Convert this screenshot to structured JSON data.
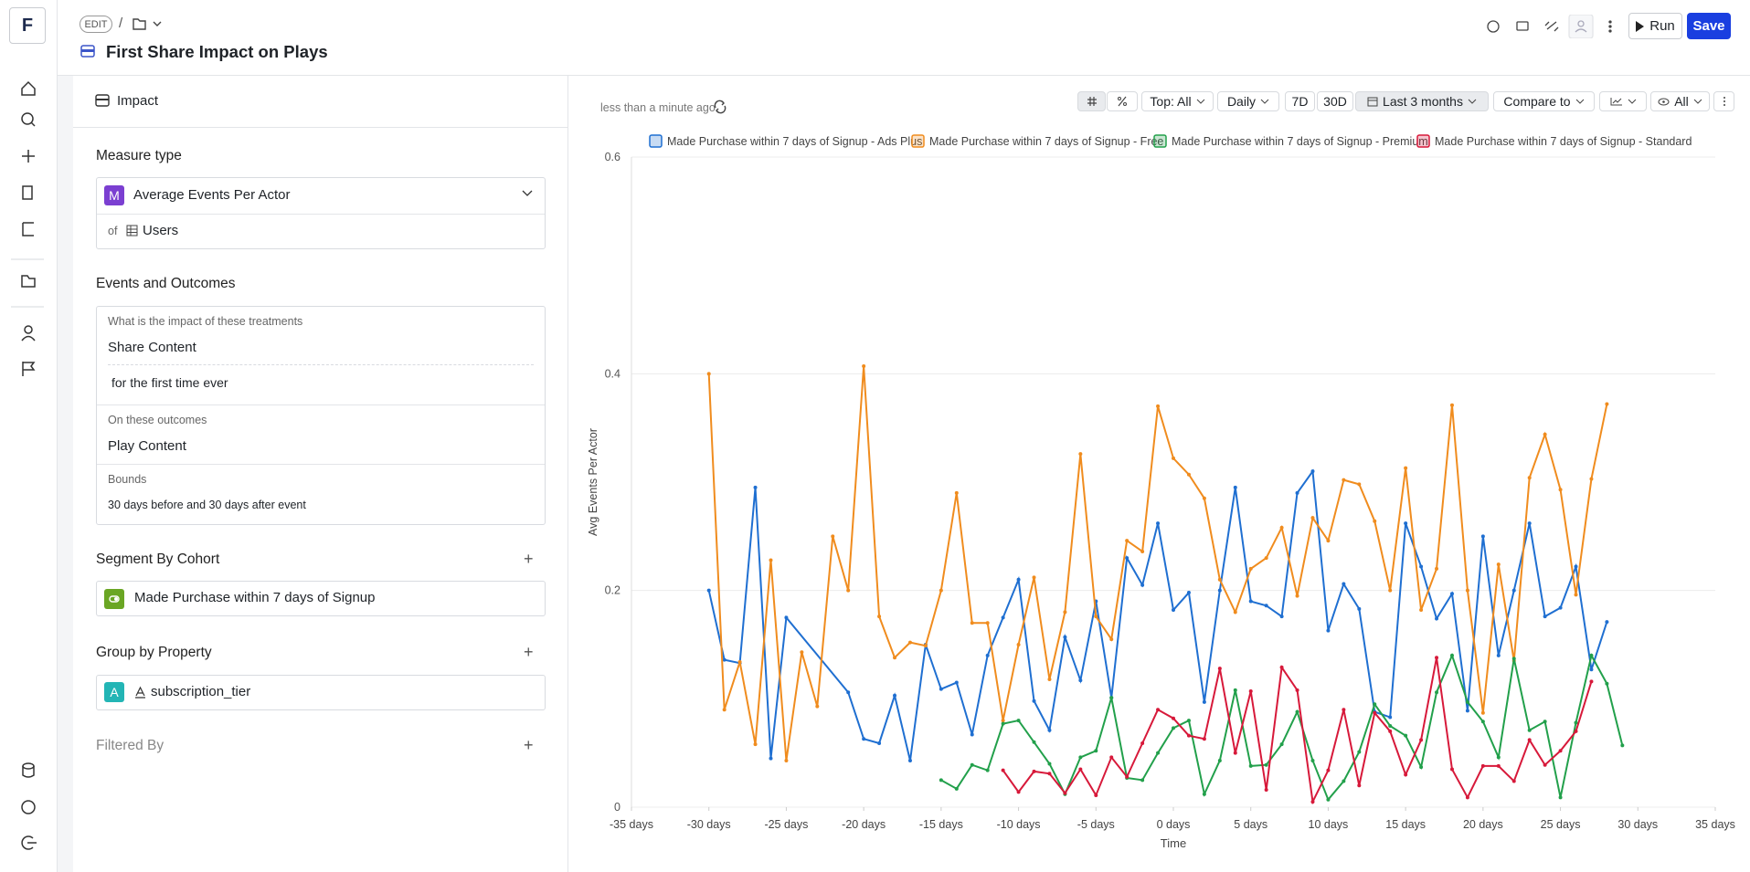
{
  "sidebar": {
    "logo": "F"
  },
  "header": {
    "mode": "EDIT",
    "separator": "/",
    "title": "First Share Impact on Plays",
    "run": "Run",
    "save": "Save"
  },
  "panel": {
    "tab": "Impact",
    "measure_heading": "Measure type",
    "measure_icon": "M",
    "measure": "Average Events Per Actor",
    "of": "of",
    "of_value": "Users",
    "events_heading": "Events and Outcomes",
    "treatment_question": "What is the impact of these treatments",
    "treatment": "Share Content",
    "treatment_filter": "for the first time ever",
    "outcomes_label": "On these outcomes",
    "outcome": "Play Content",
    "bounds_label": "Bounds",
    "bounds": "30 days before and 30 days after event",
    "segment_heading": "Segment By Cohort",
    "segment": "Made Purchase within 7 days of Signup",
    "group_heading": "Group by Property",
    "group_icon": "A",
    "group": "subscription_tier",
    "filter_heading": "Filtered By"
  },
  "chart_toolbar": {
    "updated": "less than a minute ago",
    "top": "Top: All",
    "interval": "Daily",
    "d7": "7D",
    "d30": "30D",
    "range": "Last 3 months",
    "compare": "Compare to",
    "visible": "All"
  },
  "chart_data": {
    "type": "line",
    "x_label": "Time",
    "y_label": "Avg Events Per Actor",
    "xlim": [
      -35,
      35
    ],
    "xticks": [
      {
        "value": -35,
        "label": "-35 days"
      },
      {
        "value": -30,
        "label": "-30 days"
      },
      {
        "value": -25,
        "label": "-25 days"
      },
      {
        "value": -20,
        "label": "-20 days"
      },
      {
        "value": -15,
        "label": "-15 days"
      },
      {
        "value": -10,
        "label": "-10 days"
      },
      {
        "value": -5,
        "label": "-5 days"
      },
      {
        "value": 0,
        "label": "0 days"
      },
      {
        "value": 5,
        "label": "5 days"
      },
      {
        "value": 10,
        "label": "10 days"
      },
      {
        "value": 15,
        "label": "15 days"
      },
      {
        "value": 20,
        "label": "20 days"
      },
      {
        "value": 25,
        "label": "25 days"
      },
      {
        "value": 30,
        "label": "30 days"
      },
      {
        "value": 35,
        "label": "35 days"
      }
    ],
    "ylim": [
      0,
      0.6
    ],
    "yticks": [
      0,
      0.2,
      0.4,
      0.6
    ],
    "grid": true,
    "legend": "top",
    "series": [
      {
        "name": "Made Purchase within 7 days of Signup - Ads Plus",
        "color": "#1f6fd1",
        "x": [
          -30,
          -29,
          -28,
          -27,
          -26,
          -25,
          -21,
          -20,
          -19,
          -18,
          -17,
          -16,
          -15,
          -14,
          -13,
          -12,
          -11,
          -10,
          -9,
          -8,
          -7,
          -6,
          -5,
          -4,
          -3,
          -2,
          -1,
          0,
          1,
          2,
          3,
          4,
          5,
          6,
          7,
          8,
          9,
          10,
          11,
          12,
          13,
          14,
          15,
          16,
          17,
          18,
          19,
          20,
          21,
          22,
          23,
          24,
          25,
          26,
          27,
          28
        ],
        "values": [
          0.2,
          0.136,
          0.133,
          0.295,
          0.045,
          0.175,
          0.106,
          0.063,
          0.059,
          0.103,
          0.043,
          0.15,
          0.109,
          0.115,
          0.067,
          0.14,
          0.175,
          0.21,
          0.098,
          0.071,
          0.157,
          0.117,
          0.19,
          0.101,
          0.23,
          0.205,
          0.262,
          0.182,
          0.198,
          0.097,
          0.2,
          0.295,
          0.19,
          0.186,
          0.176,
          0.29,
          0.31,
          0.163,
          0.206,
          0.183,
          0.088,
          0.083,
          0.262,
          0.222,
          0.174,
          0.197,
          0.089,
          0.25,
          0.14,
          0.2,
          0.262,
          0.176,
          0.184,
          0.222,
          0.127,
          0.171
        ]
      },
      {
        "name": "Made Purchase within 7 days of Signup - Free",
        "color": "#f08c1e",
        "x": [
          -30,
          -29,
          -28,
          -27,
          -26,
          -25,
          -24,
          -23,
          -22,
          -21,
          -20,
          -19,
          -18,
          -17,
          -16,
          -15,
          -14,
          -13,
          -12,
          -11,
          -10,
          -9,
          -8,
          -7,
          -6,
          -5,
          -4,
          -3,
          -2,
          -1,
          0,
          1,
          2,
          3,
          4,
          5,
          6,
          7,
          8,
          9,
          10,
          11,
          12,
          13,
          14,
          15,
          16,
          17,
          18,
          19,
          20,
          21,
          22,
          23,
          24,
          25,
          26,
          27,
          28
        ],
        "values": [
          0.4,
          0.09,
          0.134,
          0.058,
          0.228,
          0.043,
          0.143,
          0.093,
          0.25,
          0.2,
          0.407,
          0.176,
          0.138,
          0.152,
          0.149,
          0.2,
          0.29,
          0.17,
          0.17,
          0.08,
          0.15,
          0.212,
          0.118,
          0.18,
          0.326,
          0.176,
          0.155,
          0.246,
          0.236,
          0.37,
          0.322,
          0.307,
          0.285,
          0.21,
          0.18,
          0.22,
          0.23,
          0.258,
          0.195,
          0.267,
          0.246,
          0.302,
          0.298,
          0.264,
          0.2,
          0.313,
          0.182,
          0.22,
          0.371,
          0.2,
          0.087,
          0.224,
          0.135,
          0.304,
          0.344,
          0.293,
          0.196,
          0.303,
          0.372
        ]
      },
      {
        "name": "Made Purchase within 7 days of Signup - Premium",
        "color": "#22a04b",
        "x": [
          -15,
          -14,
          -13,
          -12,
          -11,
          -10,
          -9,
          -8,
          -7,
          -6,
          -5,
          -4,
          -3,
          -2,
          -1,
          0,
          1,
          2,
          3,
          4,
          5,
          6,
          7,
          8,
          9,
          10,
          11,
          12,
          13,
          14,
          15,
          16,
          17,
          18,
          19,
          20,
          21,
          22,
          23,
          24,
          25,
          26,
          27,
          28,
          29
        ],
        "values": [
          0.025,
          0.017,
          0.039,
          0.034,
          0.077,
          0.08,
          0.06,
          0.04,
          0.012,
          0.046,
          0.052,
          0.101,
          0.027,
          0.025,
          0.05,
          0.073,
          0.08,
          0.012,
          0.043,
          0.108,
          0.038,
          0.039,
          0.058,
          0.088,
          0.043,
          0.007,
          0.024,
          0.051,
          0.095,
          0.075,
          0.066,
          0.037,
          0.106,
          0.14,
          0.097,
          0.079,
          0.046,
          0.137,
          0.071,
          0.079,
          0.009,
          0.078,
          0.14,
          0.114,
          0.057
        ]
      },
      {
        "name": "Made Purchase within 7 days of Signup - Standard",
        "color": "#d7193a",
        "x": [
          -11,
          -10,
          -9,
          -8,
          -7,
          -6,
          -5,
          -4,
          -3,
          -2,
          -1,
          0,
          1,
          2,
          3,
          4,
          5,
          6,
          7,
          8,
          9,
          10,
          11,
          12,
          13,
          14,
          15,
          16,
          17,
          18,
          19,
          20,
          21,
          22,
          23,
          24,
          25,
          26,
          27
        ],
        "values": [
          0.034,
          0.014,
          0.033,
          0.031,
          0.013,
          0.035,
          0.011,
          0.046,
          0.028,
          0.059,
          0.09,
          0.082,
          0.066,
          0.063,
          0.128,
          0.05,
          0.107,
          0.016,
          0.129,
          0.108,
          0.005,
          0.034,
          0.09,
          0.02,
          0.087,
          0.07,
          0.03,
          0.062,
          0.138,
          0.035,
          0.009,
          0.038,
          0.038,
          0.024,
          0.062,
          0.039,
          0.052,
          0.07,
          0.116
        ]
      }
    ]
  }
}
